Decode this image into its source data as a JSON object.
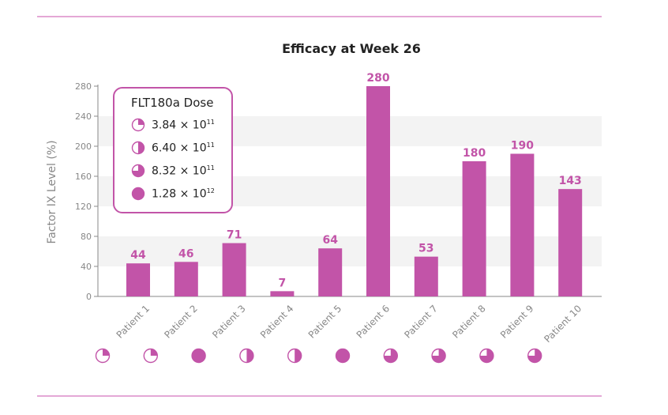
{
  "chart_data": {
    "type": "bar",
    "title": "Efficacy at Week 26",
    "xlabel": "",
    "ylabel": "Factor IX Level (%)",
    "ylim": [
      0,
      280
    ],
    "yticks": [
      0,
      40,
      80,
      120,
      160,
      200,
      240,
      280
    ],
    "categories": [
      "Patient 1",
      "Patient 2",
      "Patient 3",
      "Patient 4",
      "Patient 5",
      "Patient 6",
      "Patient 7",
      "Patient 8",
      "Patient 9",
      "Patient 10"
    ],
    "values": [
      44,
      46,
      71,
      7,
      64,
      280,
      53,
      180,
      190,
      143
    ],
    "data_labels": [
      "44",
      "46",
      "71",
      "7",
      "64",
      "280",
      "53",
      "180",
      "190",
      "143"
    ],
    "dose_index": [
      0,
      0,
      3,
      1,
      1,
      3,
      2,
      2,
      2,
      2
    ],
    "legend": {
      "title": "FLT180a Dose",
      "entries": [
        {
          "mantissa": "3.84 × 10",
          "exponent": "11",
          "fill_fraction": 0.25
        },
        {
          "mantissa": "6.40 × 10",
          "exponent": "11",
          "fill_fraction": 0.5
        },
        {
          "mantissa": "8.32 × 10",
          "exponent": "11",
          "fill_fraction": 0.75
        },
        {
          "mantissa": "1.28 × 10",
          "exponent": "12",
          "fill_fraction": 1.0
        }
      ],
      "placement": "top-left"
    },
    "grid": "alternating bands"
  },
  "colors": {
    "bar": "#c254a8",
    "label": "#c254a8",
    "band": "#f3f3f3",
    "axis": "#888888",
    "rule": "#e4a8d6",
    "text": "#222222"
  }
}
